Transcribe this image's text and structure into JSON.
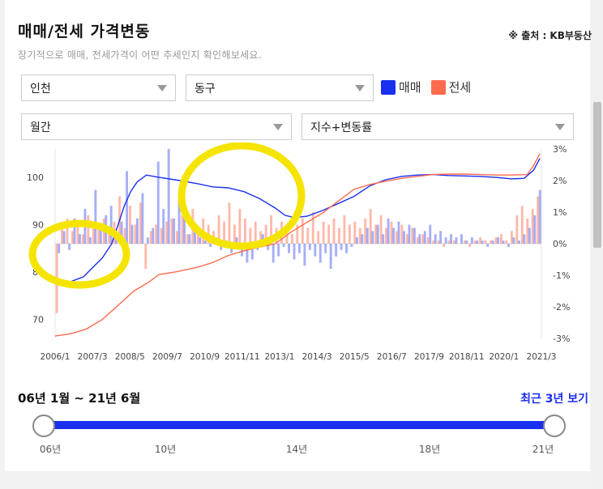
{
  "header": {
    "title": "매매/전세 가격변동",
    "source": "※ 출처 : KB부동산",
    "subtitle": "장기적으로 매매, 전세가격이 어떤 추세인지 확인해보세요."
  },
  "filters": {
    "region": "인천",
    "district": "동구",
    "period": "월간",
    "metric": "지수+변동률"
  },
  "legend": {
    "sale_label": "매매",
    "jeonse_label": "전세",
    "sale_color": "#1a2ff0",
    "jeonse_color": "#ff6a4d"
  },
  "chart_data": {
    "type": "line",
    "x_ticks": [
      "2006/1",
      "2007/3",
      "2008/5",
      "2009/7",
      "2010/9",
      "2011/11",
      "2013/1",
      "2014/3",
      "2015/5",
      "2016/7",
      "2017/9",
      "2018/11",
      "2020/1",
      "2021/3"
    ],
    "y_left_ticks": [
      "70",
      "80",
      "90",
      "100"
    ],
    "y_left_range": [
      66,
      106
    ],
    "y_right_ticks": [
      "3%",
      "2%",
      "1%",
      "0%",
      "-1%",
      "-2%",
      "-3%"
    ],
    "y_right_range": [
      -3,
      3
    ],
    "series": [
      {
        "name": "매매",
        "axis": "left",
        "x": [
          2006.0,
          2006.5,
          2006.9,
          2007.2,
          2007.5,
          2007.8,
          2008.0,
          2008.2,
          2008.4,
          2008.6,
          2008.9,
          2009.3,
          2009.8,
          2010.5,
          2011.0,
          2011.5,
          2012.0,
          2012.5,
          2013.0,
          2013.3,
          2013.6,
          2014.0,
          2014.5,
          2015.0,
          2015.5,
          2016.0,
          2016.5,
          2017.0,
          2017.5,
          2018.0,
          2018.5,
          2019.0,
          2019.5,
          2020.0,
          2020.5,
          2020.9,
          2021.2,
          2021.4
        ],
        "values": [
          78,
          78,
          79,
          81,
          83,
          86,
          90,
          94,
          97,
          99,
          100.5,
          100,
          99.5,
          98.7,
          98,
          97.8,
          97,
          95.5,
          93.5,
          92,
          91.5,
          91.8,
          93,
          94.5,
          96,
          98.2,
          99.5,
          100.2,
          100.5,
          100.6,
          100.4,
          100.3,
          100.2,
          100,
          99.7,
          99.8,
          101.5,
          104
        ]
      },
      {
        "name": "전세",
        "axis": "left",
        "x": [
          2006.0,
          2006.5,
          2007.0,
          2007.5,
          2008.0,
          2008.5,
          2009.0,
          2009.3,
          2009.8,
          2010.5,
          2011.0,
          2011.5,
          2012.0,
          2012.5,
          2013.0,
          2013.5,
          2014.0,
          2014.5,
          2015.0,
          2015.5,
          2016.0,
          2016.5,
          2017.0,
          2017.5,
          2018.0,
          2018.5,
          2019.0,
          2019.5,
          2020.0,
          2020.5,
          2021.0,
          2021.2,
          2021.4
        ],
        "values": [
          66.5,
          67,
          68,
          70,
          73,
          76,
          78,
          79.5,
          80,
          81,
          82,
          83.5,
          84.5,
          85.3,
          86,
          88.5,
          90.5,
          92.5,
          95,
          97.5,
          98.5,
          99.2,
          99.8,
          100.2,
          100.6,
          100.7,
          100.7,
          100.6,
          100.5,
          100.5,
          100.6,
          102.5,
          105
        ]
      }
    ],
    "bars_sale_pct": [
      -0.3,
      0.4,
      -0.2,
      0.8,
      0.3,
      1.1,
      0.2,
      1.7,
      0.5,
      0.9,
      1.2,
      0.4,
      0.7,
      2.3,
      0.6,
      0.8,
      1.6,
      0.2,
      0.5,
      2.6,
      1.1,
      3.0,
      0.8,
      1.4,
      0.9,
      0.3,
      0.5,
      0.2,
      0.1,
      -0.1,
      0.2,
      -0.2,
      0.1,
      -0.3,
      0.2,
      -0.4,
      -0.6,
      -0.5,
      -0.2,
      0.3,
      -0.2,
      -0.6,
      -0.4,
      -0.1,
      -0.3,
      -0.5,
      -0.3,
      -0.7,
      -0.2,
      -0.4,
      -0.6,
      -0.3,
      -0.8,
      -0.4,
      -0.2,
      -0.3,
      -0.1,
      0.2,
      0.3,
      0.5,
      0.4,
      0.6,
      0.3,
      0.8,
      0.5,
      0.7,
      0.4,
      0.6,
      0.5,
      0.3,
      0.4,
      0.6,
      0.3,
      0.4,
      0.2,
      0.3,
      0.2,
      0.3,
      0.1,
      0.2,
      0.1,
      0.1,
      -0.1,
      0.1,
      0.2,
      0.1,
      -0.1,
      0.2,
      0.1,
      0.3,
      0.5,
      0.9,
      1.7
    ],
    "bars_jeonse_pct": [
      -2.2,
      0.5,
      0.8,
      0.4,
      0.6,
      0.3,
      0.9,
      0.5,
      0.6,
      0.8,
      0.4,
      0.7,
      1.5,
      0.5,
      1.2,
      0.6,
      1.3,
      -0.8,
      0.4,
      0.6,
      0.5,
      0.7,
      0.8,
      0.4,
      0.9,
      0.3,
      1.1,
      0.5,
      0.8,
      0.6,
      0.4,
      0.9,
      0.7,
      1.3,
      0.6,
      1.1,
      0.8,
      0.5,
      0.7,
      0.4,
      0.6,
      0.9,
      0.5,
      0.7,
      0.4,
      0.3,
      0.6,
      0.8,
      0.5,
      1.0,
      0.4,
      0.7,
      0.6,
      0.8,
      0.5,
      0.9,
      0.6,
      0.7,
      0.5,
      0.8,
      1.1,
      0.6,
      0.9,
      0.5,
      0.7,
      0.4,
      0.6,
      0.3,
      0.5,
      0.2,
      0.3,
      0.2,
      0.1,
      0.1,
      -0.1,
      0.1,
      0.1,
      0.0,
      0.1,
      -0.1,
      0.1,
      0.2,
      0.1,
      0.1,
      0.2,
      0.3,
      0.1,
      0.4,
      0.9,
      1.2,
      0.8,
      1.1,
      1.5
    ]
  },
  "range": {
    "label": "06년 1월 ~ 21년 6월",
    "recent_button": "최근 3년 보기",
    "ticks": [
      "06년",
      "10년",
      "14년",
      "18년",
      "21년"
    ]
  }
}
